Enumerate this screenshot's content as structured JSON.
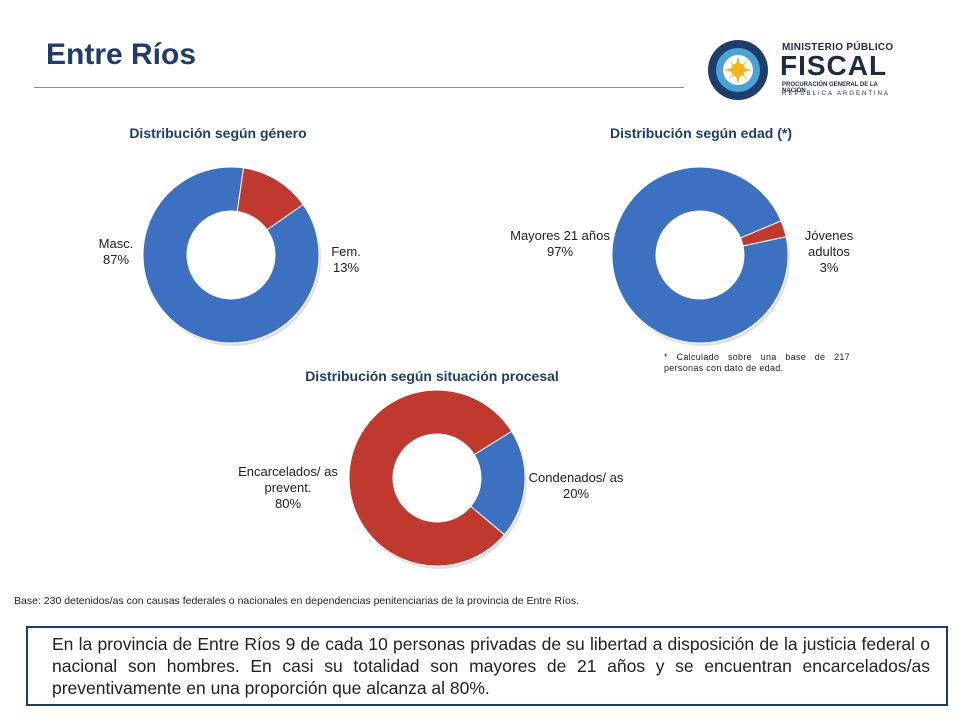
{
  "page": {
    "title": "Entre Ríos",
    "base_note": "Base: 230 detenidos/as con causas federales o nacionales en dependencias penitenciarias de la provincia de Entre Ríos.",
    "summary": "En la provincia de Entre Ríos 9 de cada 10 personas privadas de su libertad a disposición de la justicia federal o nacional son hombres. En casi su totalidad son mayores de 21 años y se encuentran encarcelados/as preventivamente en una proporción que alcanza al 80%."
  },
  "logo": {
    "line1": "MINISTERIO PÚBLICO",
    "line2": "FISCAL",
    "line3": "PROCURACIÓN GENERAL DE LA NACIÓN",
    "line4": "REPÚBLICA ARGENTINA"
  },
  "colors": {
    "blue": "#3c70c0",
    "red": "#c0392f",
    "title": "#1f3d6b"
  },
  "chart_data": [
    {
      "type": "pie",
      "title": "Distribución según género",
      "series": [
        {
          "label": "Masc.",
          "value": 87,
          "pct": "87%",
          "color": "#3c70c0"
        },
        {
          "label": "Fem.",
          "value": 13,
          "pct": "13%",
          "color": "#c0392f"
        }
      ]
    },
    {
      "type": "pie",
      "title": "Distribución según edad (*)",
      "footnote": "* Calculado sobre una base de 217 personas con dato de edad.",
      "series": [
        {
          "label": "Mayores 21 años",
          "value": 97,
          "pct": "97%",
          "color": "#3c70c0"
        },
        {
          "label": "Jóvenes adultos",
          "value": 3,
          "pct": "3%",
          "color": "#c0392f"
        }
      ]
    },
    {
      "type": "pie",
      "title": "Distribución según situación procesal",
      "series": [
        {
          "label": "Encarcelados/ as prevent.",
          "value": 80,
          "pct": "80%",
          "color": "#c0392f"
        },
        {
          "label": "Condenados/ as",
          "value": 20,
          "pct": "20%",
          "color": "#3c70c0"
        }
      ]
    }
  ]
}
